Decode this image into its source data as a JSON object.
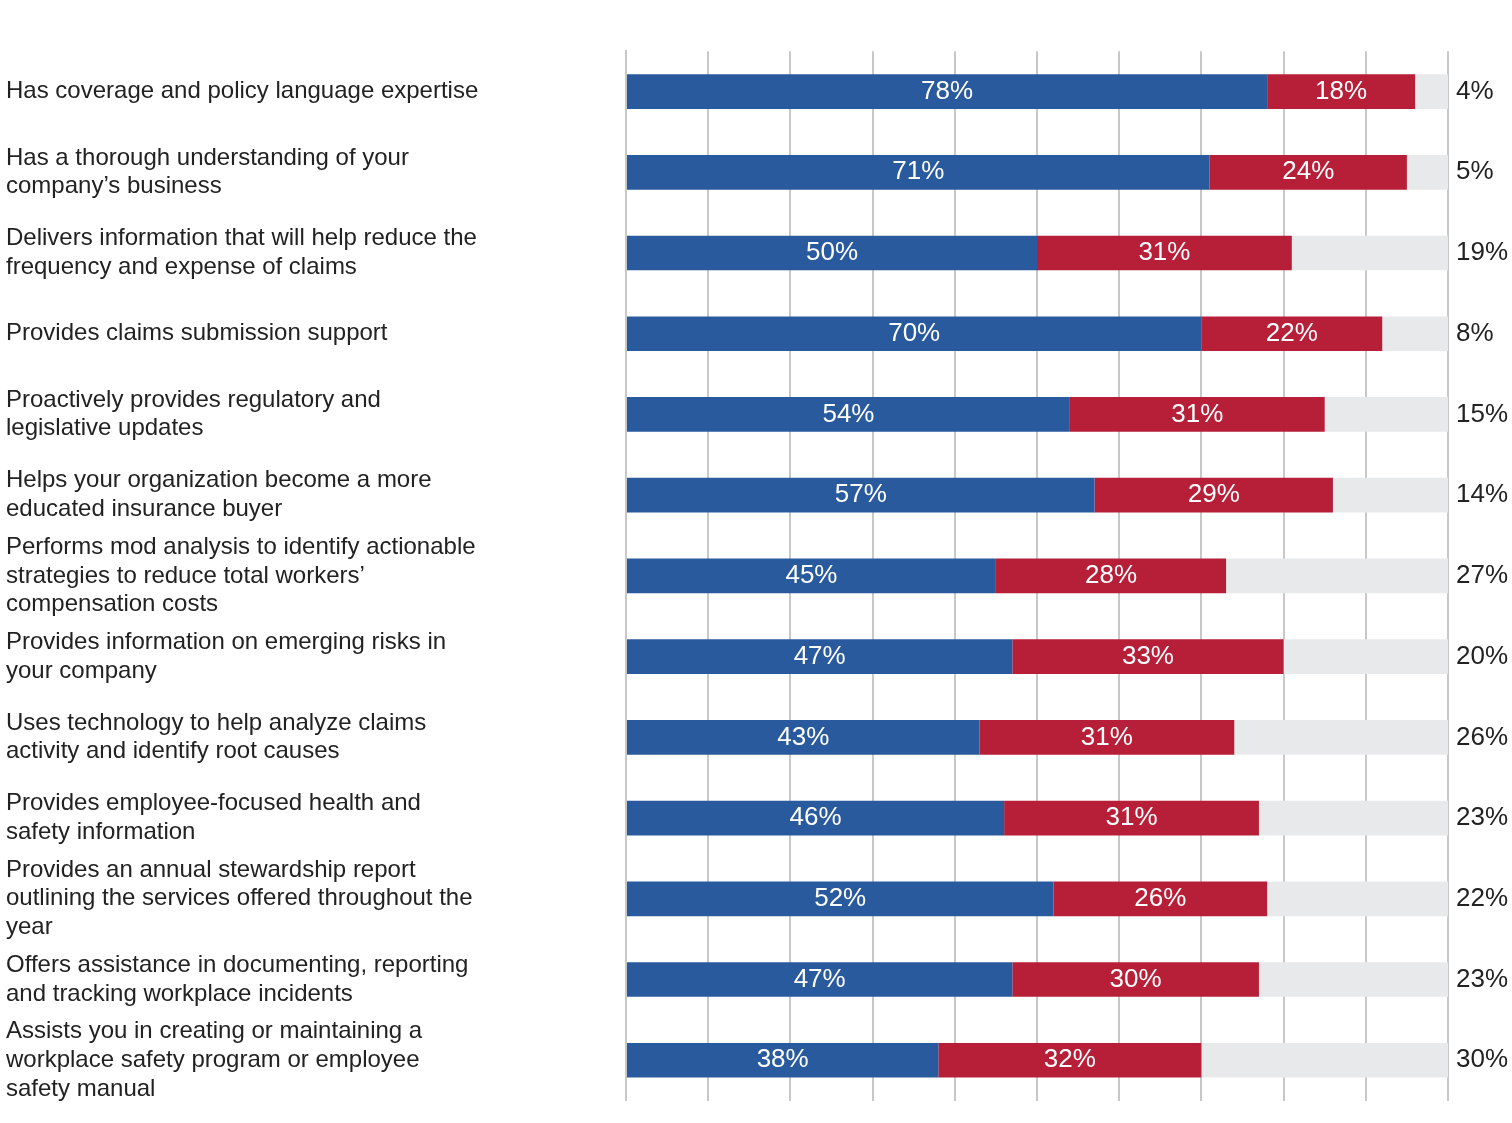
{
  "chart_data": {
    "type": "bar",
    "orientation": "horizontal",
    "stacked": true,
    "categories": [
      "Has coverage and policy language expertise",
      "Has a thorough understanding of your company’s business",
      "Delivers information that will help reduce the frequency and expense of claims",
      "Provides claims submission support",
      "Proactively provides regulatory and legislative updates",
      "Helps your organization become a more educated insurance buyer",
      "Performs mod analysis to identify actionable strategies to reduce total workers’ compensation costs",
      "Provides information on emerging risks in your company",
      "Uses technology to help analyze claims activity and identify root causes",
      "Provides employee-focused health and safety information",
      "Provides an annual stewardship report outlining the services offered throughout the year",
      "Offers assistance in documenting, reporting and tracking workplace incidents",
      "Assists you in creating or maintaining a workplace safety program or employee safety manual"
    ],
    "series": [
      {
        "color": "#2a5a9e",
        "values": [
          78,
          71,
          50,
          70,
          54,
          57,
          45,
          47,
          43,
          46,
          52,
          47,
          38
        ],
        "value_labels": [
          "78%",
          "71%",
          "50%",
          "70%",
          "54%",
          "57%",
          "45%",
          "47%",
          "43%",
          "46%",
          "52%",
          "47%",
          "38%"
        ]
      },
      {
        "color": "#b71f38",
        "values": [
          18,
          24,
          31,
          22,
          31,
          29,
          28,
          33,
          31,
          31,
          26,
          30,
          32
        ],
        "value_labels": [
          "18%",
          "24%",
          "31%",
          "22%",
          "31%",
          "29%",
          "28%",
          "33%",
          "31%",
          "31%",
          "26%",
          "30%",
          "32%"
        ]
      },
      {
        "color": "#e8e9eb",
        "values": [
          4,
          5,
          19,
          8,
          15,
          14,
          27,
          20,
          26,
          23,
          22,
          23,
          30
        ],
        "value_labels": [
          "4%",
          "5%",
          "19%",
          "8%",
          "15%",
          "14%",
          "27%",
          "20%",
          "26%",
          "23%",
          "22%",
          "23%",
          "30%"
        ]
      }
    ],
    "tick_labels": "y",
    "grid": "x",
    "legend": false
  }
}
